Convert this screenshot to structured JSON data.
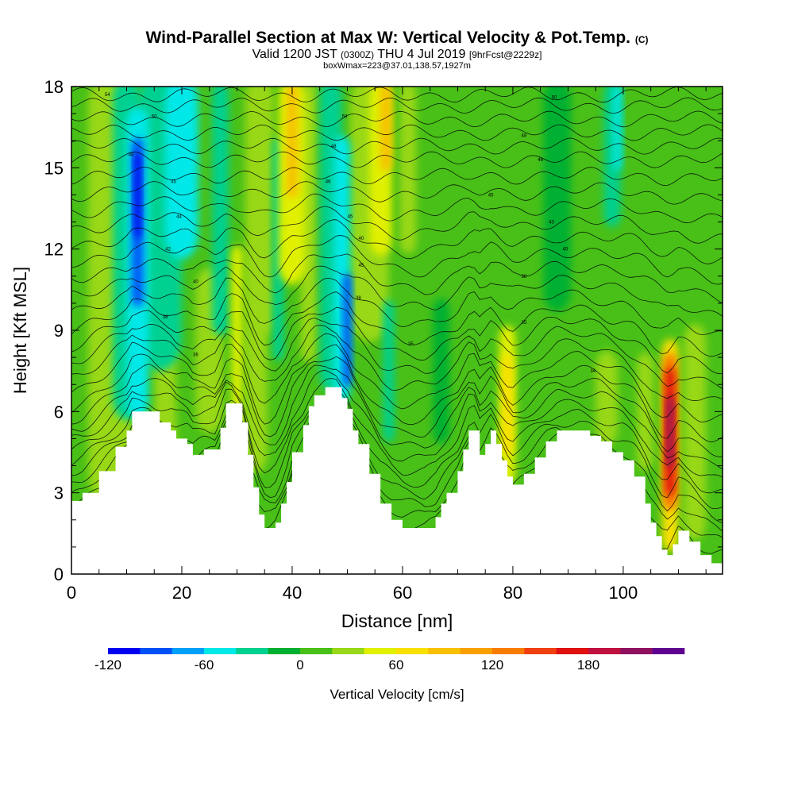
{
  "title": {
    "main": "Wind-Parallel Section at Max W: Vertical Velocity & Pot.Temp.",
    "copyright": "(C)",
    "valid_prefix": "Valid 1200 JST",
    "valid_utc": "(0300Z)",
    "valid_date": "THU 4 Jul 2019",
    "forecast": "[9hrFcst@2229z]",
    "box": "boxWmax=223@37.01,138.57,1927m"
  },
  "chart_data": {
    "type": "heatmap",
    "xlabel": "Distance [nm]",
    "ylabel": "Height [Kft MSL]",
    "xlim": [
      0,
      118
    ],
    "ylim": [
      0,
      18
    ],
    "xticks": [
      0,
      20,
      40,
      60,
      80,
      100
    ],
    "yticks": [
      0,
      3,
      6,
      9,
      12,
      15,
      18
    ],
    "colorbar": {
      "label": "Vertical Velocity [cm/s]",
      "tick_values": [
        -120,
        -60,
        0,
        60,
        120,
        180
      ],
      "tick_labels": [
        "-120",
        "-60",
        "0",
        "60",
        "120",
        "180"
      ],
      "levels": [
        -120,
        -100,
        -80,
        -60,
        -40,
        -20,
        0,
        20,
        40,
        60,
        80,
        100,
        120,
        140,
        160,
        180,
        200,
        220
      ],
      "colors": [
        "#0000f0",
        "#0050f8",
        "#00a0f8",
        "#00e8e8",
        "#00d090",
        "#00b030",
        "#48c018",
        "#98d818",
        "#e0f000",
        "#f8e000",
        "#f8c000",
        "#f8a000",
        "#f87c00",
        "#f04010",
        "#e01010",
        "#c01040",
        "#901060",
        "#600090"
      ]
    },
    "terrain_kft": {
      "x": [
        0,
        2,
        5,
        8,
        10,
        11,
        14,
        16,
        18,
        19,
        21,
        22,
        24,
        26,
        27,
        28,
        29,
        31,
        32,
        33,
        34,
        35,
        36,
        37,
        38,
        39,
        40,
        42,
        43,
        44,
        46,
        48,
        49,
        50,
        51,
        52,
        54,
        56,
        58,
        60,
        62,
        64,
        66,
        67,
        68,
        70,
        71,
        72,
        73,
        74,
        75,
        76,
        77,
        78,
        79,
        80,
        82,
        84,
        86,
        88,
        90,
        92,
        94,
        96,
        98,
        100,
        102,
        104,
        105,
        106,
        107,
        108,
        109,
        110,
        112,
        114,
        116,
        118
      ],
      "y": [
        2.7,
        3,
        3.8,
        4.7,
        5.3,
        6,
        6,
        5.6,
        5.3,
        5,
        4.8,
        4.4,
        4.6,
        4.6,
        5.4,
        6.3,
        6.3,
        5.6,
        4.4,
        3.2,
        2.2,
        1.7,
        1.7,
        1.9,
        2.6,
        3.4,
        4.5,
        5.5,
        6.2,
        6.6,
        6.9,
        6.9,
        6.5,
        6.1,
        5.3,
        4.8,
        3.7,
        2.6,
        2.0,
        1.7,
        1.7,
        1.7,
        2.1,
        2.6,
        3.0,
        3.8,
        4.6,
        5.3,
        5.3,
        4.4,
        4.8,
        5.3,
        4.8,
        4.2,
        3.6,
        3.3,
        3.7,
        4.3,
        4.9,
        5.3,
        5.3,
        5.3,
        5.1,
        4.9,
        4.5,
        4.2,
        3.6,
        2.6,
        1.9,
        1.4,
        0.9,
        0.7,
        1.1,
        1.6,
        1.2,
        0.7,
        0.4,
        0.3
      ]
    },
    "updrafts": [
      {
        "x": 7,
        "y0": 3.0,
        "y1": 18,
        "w": 8,
        "value": 20
      },
      {
        "x": 17,
        "y0": 3.0,
        "y1": 12,
        "w": 4,
        "value": 30
      },
      {
        "x": 25,
        "y0": 5.5,
        "y1": 11,
        "w": 5,
        "value": 20
      },
      {
        "x": 30,
        "y0": 5.5,
        "y1": 12,
        "w": 2,
        "value": 50
      },
      {
        "x": 33.5,
        "y0": 4.0,
        "y1": 18,
        "w": 4,
        "value": 20
      },
      {
        "x": 35,
        "y0": 9.0,
        "y1": 18,
        "w": 3,
        "value": 30
      },
      {
        "x": 40,
        "y0": 11.0,
        "y1": 18,
        "w": 5,
        "value": 50
      },
      {
        "x": 40,
        "y0": 14.0,
        "y1": 18,
        "w": 2,
        "value": 80
      },
      {
        "x": 43,
        "y0": 8.0,
        "y1": 18,
        "w": 3,
        "value": 30
      },
      {
        "x": 54,
        "y0": 9.0,
        "y1": 18,
        "w": 7,
        "value": 30
      },
      {
        "x": 56,
        "y0": 12.0,
        "y1": 18,
        "w": 4,
        "value": 50
      },
      {
        "x": 57,
        "y0": 15.0,
        "y1": 18,
        "w": 2,
        "value": 80
      },
      {
        "x": 61,
        "y0": 12.0,
        "y1": 18,
        "w": 3,
        "value": 20
      },
      {
        "x": 79,
        "y0": 3.5,
        "y1": 9,
        "w": 3,
        "value": 50
      },
      {
        "x": 79,
        "y0": 4.5,
        "y1": 8,
        "w": 2,
        "value": 70
      },
      {
        "x": 97,
        "y0": 5.0,
        "y1": 8,
        "w": 4,
        "value": 30
      },
      {
        "x": 104,
        "y0": 4.0,
        "y1": 8,
        "w": 3,
        "value": 20
      },
      {
        "x": 108.5,
        "y0": 1.0,
        "y1": 8.5,
        "w": 3,
        "value": 70
      },
      {
        "x": 108.5,
        "y0": 2.5,
        "y1": 8,
        "w": 2.4,
        "value": 120
      },
      {
        "x": 108.5,
        "y0": 3.0,
        "y1": 7.5,
        "w": 1.7,
        "value": 170
      },
      {
        "x": 108.5,
        "y0": 4.0,
        "y1": 6.5,
        "w": 1,
        "value": 200
      },
      {
        "x": 113,
        "y0": 1.5,
        "y1": 9,
        "w": 4,
        "value": 20
      }
    ],
    "downdrafts": [
      {
        "x": 10,
        "y0": 6.0,
        "y1": 18,
        "w": 5,
        "value": -40
      },
      {
        "x": 12,
        "y0": 6.0,
        "y1": 17,
        "w": 4,
        "value": -60
      },
      {
        "x": 12,
        "y0": 10.0,
        "y1": 16,
        "w": 2,
        "value": -90
      },
      {
        "x": 12,
        "y0": 12.5,
        "y1": 15.5,
        "w": 1,
        "value": -110
      },
      {
        "x": 16,
        "y0": 8.0,
        "y1": 18,
        "w": 8,
        "value": -40
      },
      {
        "x": 20,
        "y0": 12.0,
        "y1": 18,
        "w": 6,
        "value": -50
      },
      {
        "x": 27,
        "y0": 9.0,
        "y1": 18,
        "w": 3,
        "value": -40
      },
      {
        "x": 37.5,
        "y0": 8.0,
        "y1": 16,
        "w": 2,
        "value": -40
      },
      {
        "x": 47,
        "y0": 7.0,
        "y1": 18,
        "w": 4,
        "value": -40
      },
      {
        "x": 49,
        "y0": 6.5,
        "y1": 16,
        "w": 3,
        "value": -60
      },
      {
        "x": 50,
        "y0": 7.0,
        "y1": 11,
        "w": 1.5,
        "value": -90
      },
      {
        "x": 57.5,
        "y0": 5.0,
        "y1": 10,
        "w": 2,
        "value": -40
      },
      {
        "x": 67,
        "y0": 5.0,
        "y1": 10,
        "w": 3,
        "value": -20
      },
      {
        "x": 88,
        "y0": 10.0,
        "y1": 18,
        "w": 5,
        "value": -20
      },
      {
        "x": 98,
        "y0": 13.0,
        "y1": 18,
        "w": 3,
        "value": -30
      },
      {
        "x": 99,
        "y0": 15.0,
        "y1": 18,
        "w": 1.5,
        "value": -50
      }
    ],
    "theta_contour_heights_kft": [
      3.2,
      3.6,
      4.0,
      4.4,
      4.8,
      5.2,
      5.6,
      6.0,
      6.4,
      6.8,
      7.3,
      7.8,
      8.3,
      8.8,
      9.3,
      9.9,
      10.5,
      11.1,
      11.7,
      12.3,
      12.9,
      13.5,
      14.1,
      14.7,
      15.3,
      15.8,
      16.3,
      16.8,
      17.3,
      17.7
    ],
    "contour_labels": [
      {
        "x": 6.5,
        "y": 17.7,
        "text": "54"
      },
      {
        "x": 15,
        "y": 16.9,
        "text": "50"
      },
      {
        "x": 10.8,
        "y": 15.5,
        "text": "48"
      },
      {
        "x": 18.5,
        "y": 14.5,
        "text": "45"
      },
      {
        "x": 19.5,
        "y": 13.2,
        "text": "44"
      },
      {
        "x": 17.5,
        "y": 12.0,
        "text": "42"
      },
      {
        "x": 22.5,
        "y": 10.8,
        "text": "40"
      },
      {
        "x": 17.0,
        "y": 9.5,
        "text": "38"
      },
      {
        "x": 22.5,
        "y": 8.1,
        "text": "36"
      },
      {
        "x": 49.5,
        "y": 16.9,
        "text": "50"
      },
      {
        "x": 47.5,
        "y": 15.8,
        "text": "48"
      },
      {
        "x": 46.5,
        "y": 14.5,
        "text": "46"
      },
      {
        "x": 50.5,
        "y": 13.2,
        "text": "45"
      },
      {
        "x": 52.5,
        "y": 12.4,
        "text": "40"
      },
      {
        "x": 52.5,
        "y": 11.4,
        "text": "45"
      },
      {
        "x": 52.0,
        "y": 10.2,
        "text": "38"
      },
      {
        "x": 61.5,
        "y": 8.5,
        "text": "35"
      },
      {
        "x": 87.5,
        "y": 17.6,
        "text": "50"
      },
      {
        "x": 82.0,
        "y": 16.2,
        "text": "48"
      },
      {
        "x": 85.0,
        "y": 15.3,
        "text": "46"
      },
      {
        "x": 76.0,
        "y": 14.0,
        "text": "45"
      },
      {
        "x": 87.0,
        "y": 13.0,
        "text": "43"
      },
      {
        "x": 89.5,
        "y": 12.0,
        "text": "40"
      },
      {
        "x": 82.0,
        "y": 11.0,
        "text": "38"
      },
      {
        "x": 82.0,
        "y": 9.3,
        "text": "35"
      },
      {
        "x": 94.5,
        "y": 7.5,
        "text": "34"
      }
    ]
  }
}
